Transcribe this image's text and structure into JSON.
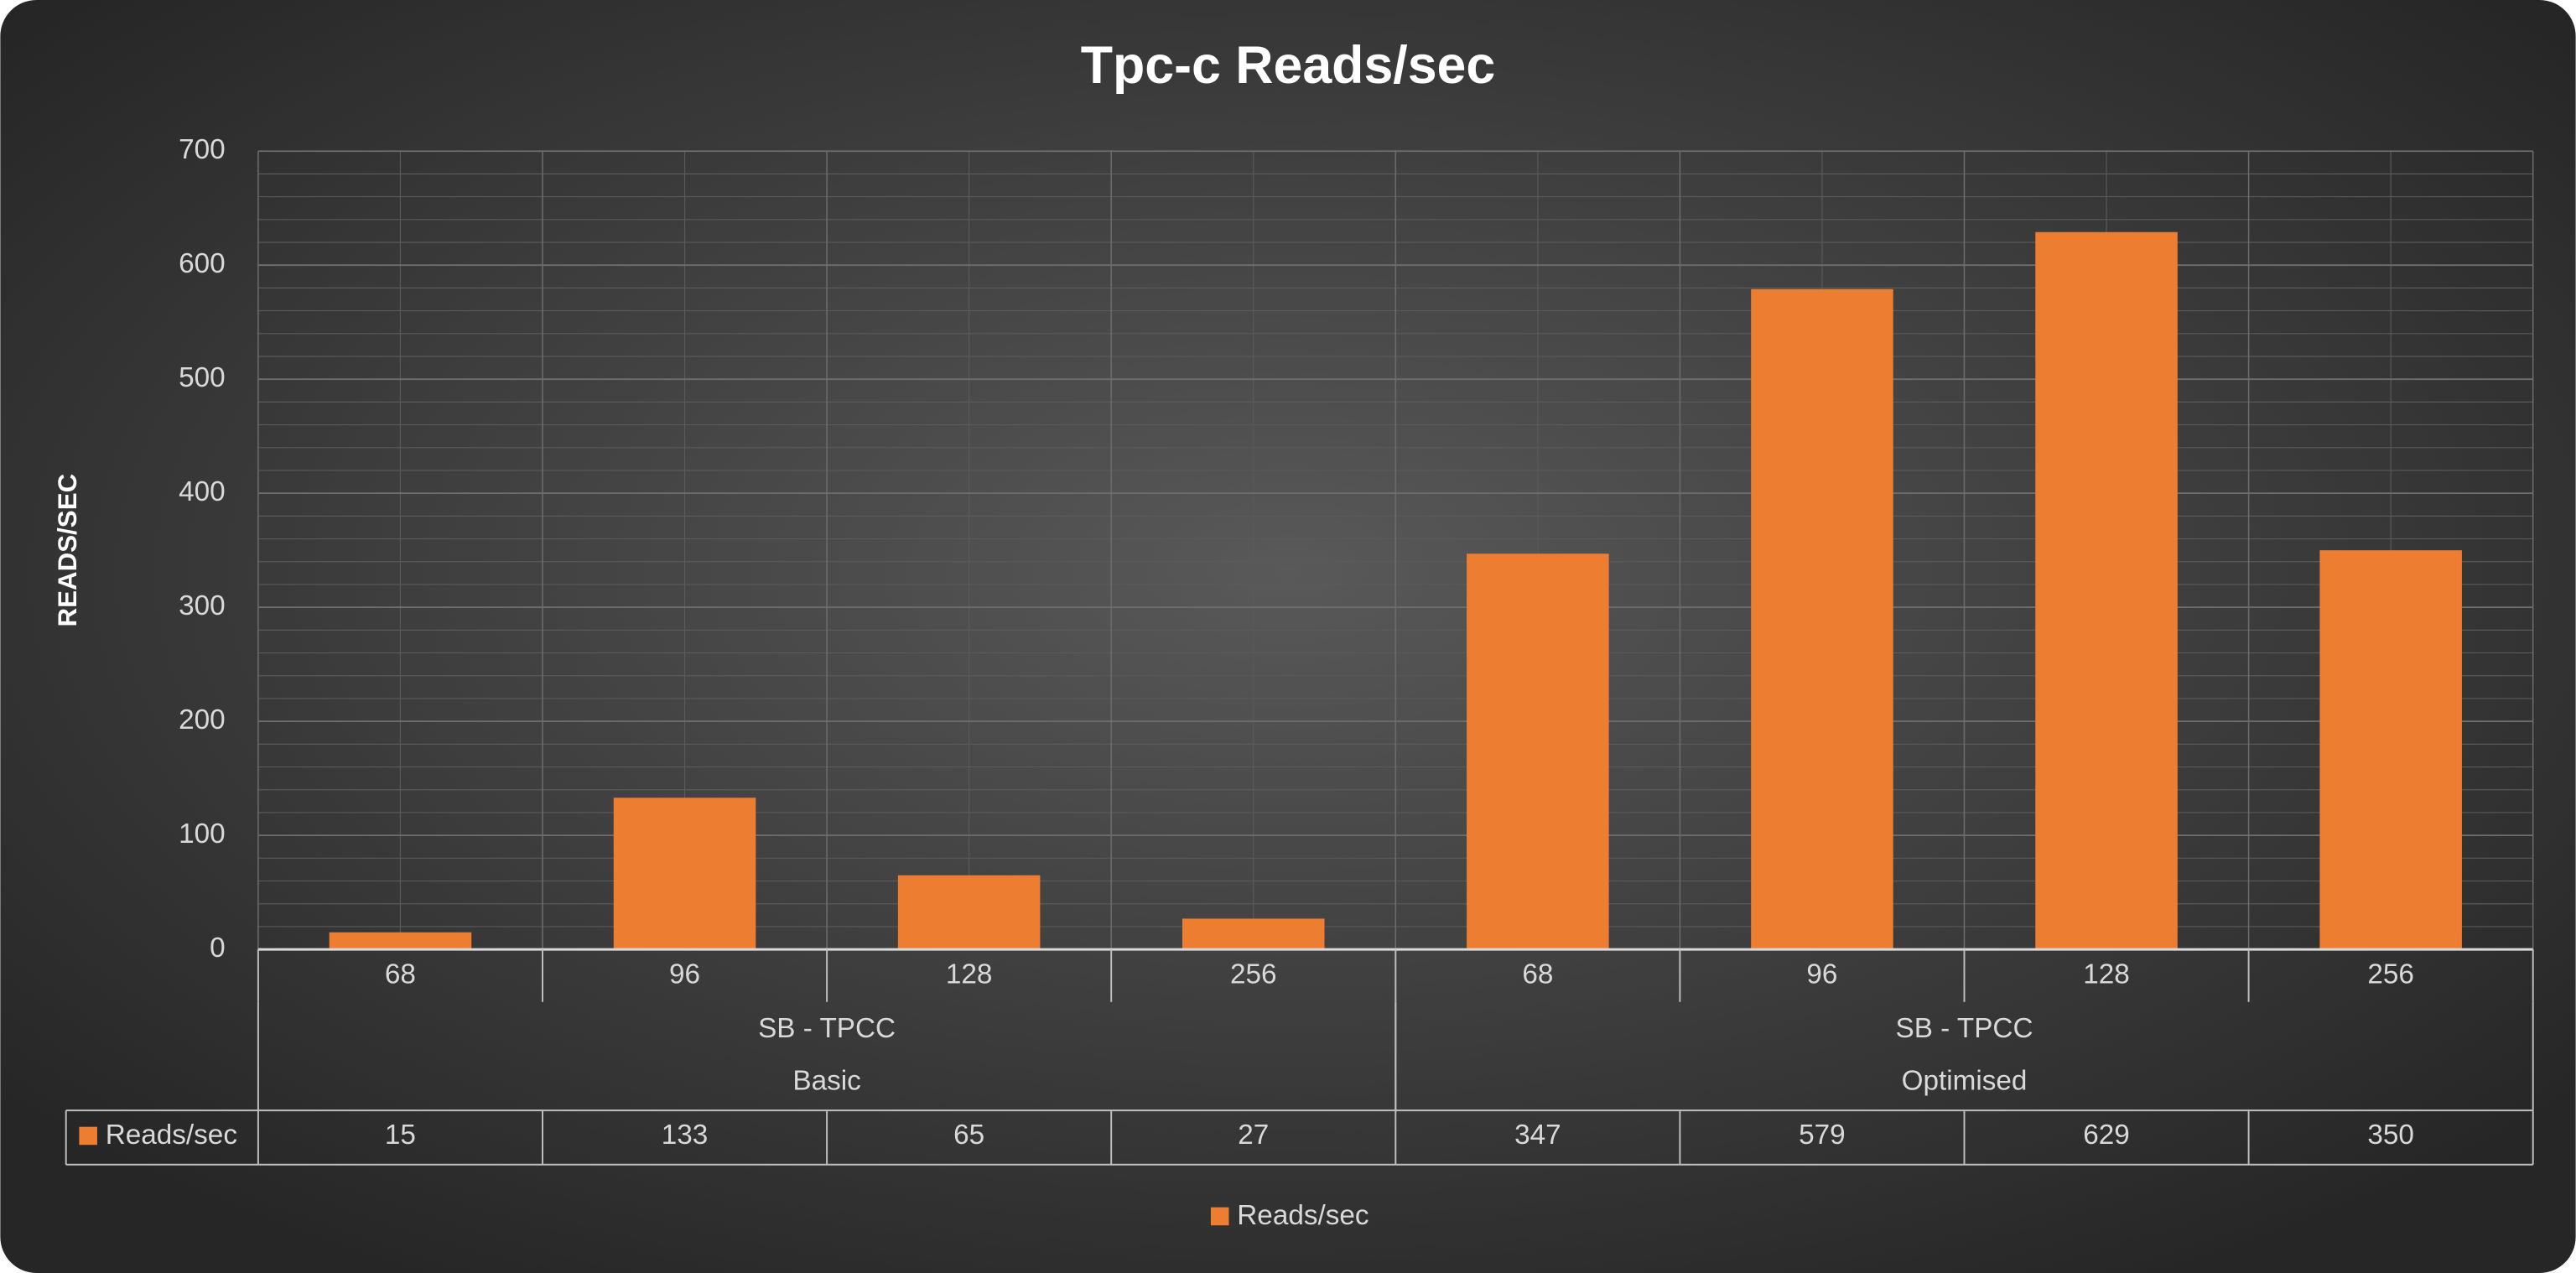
{
  "chart_data": {
    "type": "bar",
    "title": "Tpc-c Reads/sec",
    "y_label": "READS/SEC",
    "categories": [
      "68",
      "96",
      "128",
      "256",
      "68",
      "96",
      "128",
      "256"
    ],
    "groups": [
      {
        "label": "SB - TPCC",
        "sublabel": "Basic"
      },
      {
        "label": "SB - TPCC",
        "sublabel": "Optimised"
      }
    ],
    "series": [
      {
        "name": "Reads/sec",
        "color": "#ed7d31",
        "values": [
          15,
          133,
          65,
          27,
          347,
          579,
          629,
          350
        ]
      }
    ],
    "ylim": [
      0,
      700
    ],
    "yticks": [
      0,
      100,
      200,
      300,
      400,
      500,
      600,
      700
    ],
    "grid": true,
    "minor_grid": true,
    "data_table": true,
    "legend": "bottom"
  }
}
